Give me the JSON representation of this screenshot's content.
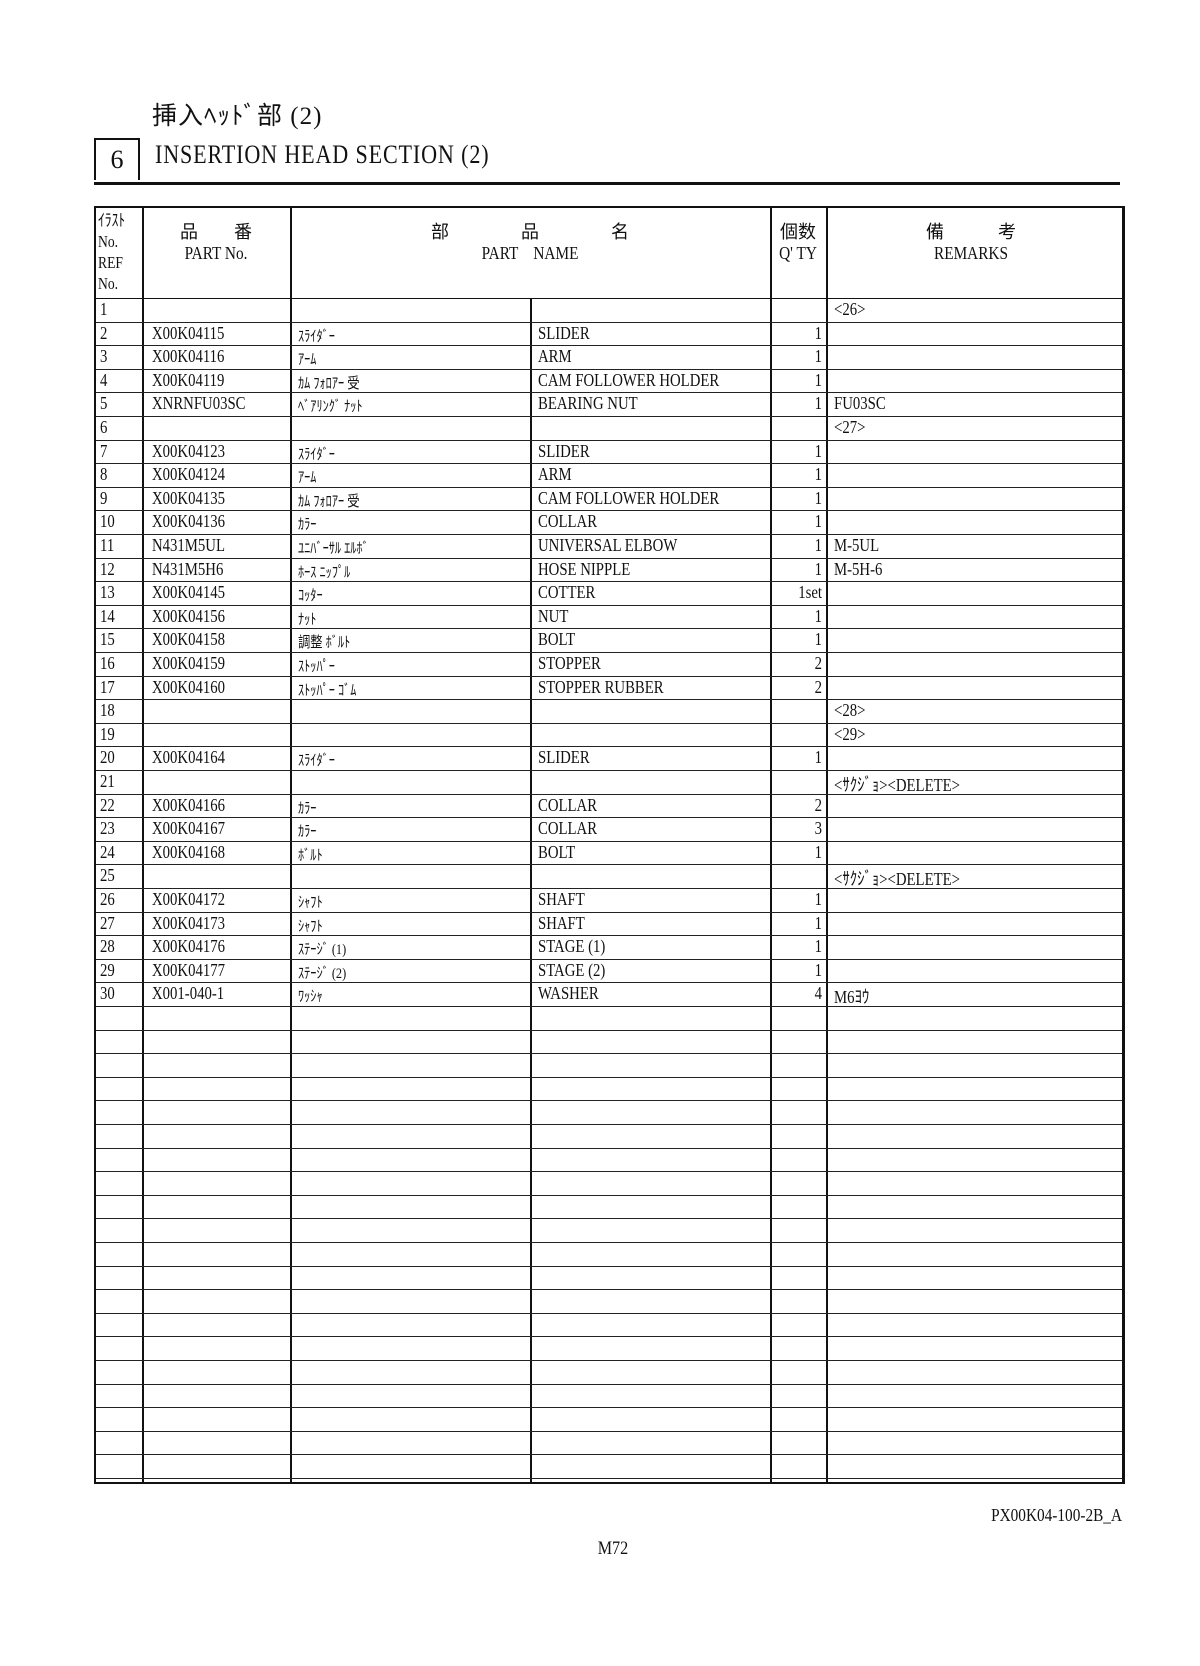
{
  "header": {
    "title_jp": "挿入ﾍｯﾄﾞ部 (2)",
    "section_number": "6",
    "title_en": "INSERTION HEAD SECTION (2)"
  },
  "columns": {
    "ref_jp": "ｲﾗｽﾄ",
    "ref_en": "No.",
    "ref_en2": "REF",
    "ref_en3": "No.",
    "partno_jp": "品　　番",
    "partno_en": "PART No.",
    "name_jp": "部　　　　品　　　　名",
    "name_en": "PART　NAME",
    "qty_jp": "個数",
    "qty_en": "Q' TY",
    "remarks_jp": "備　　　考",
    "remarks_en": "REMARKS"
  },
  "rows": [
    {
      "ref": "1",
      "part_no": "",
      "name_jp": "",
      "name_en": "",
      "qty": "",
      "remarks": "<26>"
    },
    {
      "ref": "2",
      "part_no": "X00K04115",
      "name_jp": "ｽﾗｲﾀﾞｰ",
      "name_en": "SLIDER",
      "qty": "1",
      "remarks": ""
    },
    {
      "ref": "3",
      "part_no": "X00K04116",
      "name_jp": "ｱｰﾑ",
      "name_en": "ARM",
      "qty": "1",
      "remarks": ""
    },
    {
      "ref": "4",
      "part_no": "X00K04119",
      "name_jp": "ｶﾑ ﾌｫﾛｱｰ 受",
      "name_en": "CAM FOLLOWER HOLDER",
      "qty": "1",
      "remarks": ""
    },
    {
      "ref": "5",
      "part_no": "XNRNFU03SC",
      "name_jp": "ﾍﾞｱﾘﾝｸﾞ ﾅｯﾄ",
      "name_en": "BEARING NUT",
      "qty": "1",
      "remarks": "FU03SC"
    },
    {
      "ref": "6",
      "part_no": "",
      "name_jp": "",
      "name_en": "",
      "qty": "",
      "remarks": "<27>"
    },
    {
      "ref": "7",
      "part_no": "X00K04123",
      "name_jp": "ｽﾗｲﾀﾞｰ",
      "name_en": "SLIDER",
      "qty": "1",
      "remarks": ""
    },
    {
      "ref": "8",
      "part_no": "X00K04124",
      "name_jp": "ｱｰﾑ",
      "name_en": "ARM",
      "qty": "1",
      "remarks": ""
    },
    {
      "ref": "9",
      "part_no": "X00K04135",
      "name_jp": "ｶﾑ ﾌｫﾛｱｰ 受",
      "name_en": "CAM FOLLOWER HOLDER",
      "qty": "1",
      "remarks": ""
    },
    {
      "ref": "10",
      "part_no": "X00K04136",
      "name_jp": "ｶﾗｰ",
      "name_en": "COLLAR",
      "qty": "1",
      "remarks": ""
    },
    {
      "ref": "11",
      "part_no": "N431M5UL",
      "name_jp": "ﾕﾆﾊﾞｰｻﾙ ｴﾙﾎﾞ",
      "name_en": "UNIVERSAL ELBOW",
      "qty": "1",
      "remarks": "M-5UL"
    },
    {
      "ref": "12",
      "part_no": "N431M5H6",
      "name_jp": "ﾎｰｽ ﾆｯﾌﾟﾙ",
      "name_en": "HOSE NIPPLE",
      "qty": "1",
      "remarks": "M-5H-6"
    },
    {
      "ref": "13",
      "part_no": "X00K04145",
      "name_jp": "ｺｯﾀｰ",
      "name_en": "COTTER",
      "qty": "1set",
      "remarks": ""
    },
    {
      "ref": "14",
      "part_no": "X00K04156",
      "name_jp": "ﾅｯﾄ",
      "name_en": "NUT",
      "qty": "1",
      "remarks": ""
    },
    {
      "ref": "15",
      "part_no": "X00K04158",
      "name_jp": "調整 ﾎﾞﾙﾄ",
      "name_en": "BOLT",
      "qty": "1",
      "remarks": ""
    },
    {
      "ref": "16",
      "part_no": "X00K04159",
      "name_jp": "ｽﾄｯﾊﾟｰ",
      "name_en": "STOPPER",
      "qty": "2",
      "remarks": ""
    },
    {
      "ref": "17",
      "part_no": "X00K04160",
      "name_jp": "ｽﾄｯﾊﾟｰ ｺﾞﾑ",
      "name_en": "STOPPER RUBBER",
      "qty": "2",
      "remarks": ""
    },
    {
      "ref": "18",
      "part_no": "",
      "name_jp": "",
      "name_en": "",
      "qty": "",
      "remarks": "<28>"
    },
    {
      "ref": "19",
      "part_no": "",
      "name_jp": "",
      "name_en": "",
      "qty": "",
      "remarks": "<29>"
    },
    {
      "ref": "20",
      "part_no": "X00K04164",
      "name_jp": "ｽﾗｲﾀﾞｰ",
      "name_en": "SLIDER",
      "qty": "1",
      "remarks": ""
    },
    {
      "ref": "21",
      "part_no": "",
      "name_jp": "",
      "name_en": "",
      "qty": "",
      "remarks": "<ｻｸｼﾞｮ><DELETE>"
    },
    {
      "ref": "22",
      "part_no": "X00K04166",
      "name_jp": "ｶﾗｰ",
      "name_en": "COLLAR",
      "qty": "2",
      "remarks": ""
    },
    {
      "ref": "23",
      "part_no": "X00K04167",
      "name_jp": "ｶﾗｰ",
      "name_en": "COLLAR",
      "qty": "3",
      "remarks": ""
    },
    {
      "ref": "24",
      "part_no": "X00K04168",
      "name_jp": "ﾎﾞﾙﾄ",
      "name_en": "BOLT",
      "qty": "1",
      "remarks": ""
    },
    {
      "ref": "25",
      "part_no": "",
      "name_jp": "",
      "name_en": "",
      "qty": "",
      "remarks": "<ｻｸｼﾞｮ><DELETE>"
    },
    {
      "ref": "26",
      "part_no": "X00K04172",
      "name_jp": "ｼｬﾌﾄ",
      "name_en": "SHAFT",
      "qty": "1",
      "remarks": ""
    },
    {
      "ref": "27",
      "part_no": "X00K04173",
      "name_jp": "ｼｬﾌﾄ",
      "name_en": "SHAFT",
      "qty": "1",
      "remarks": ""
    },
    {
      "ref": "28",
      "part_no": "X00K04176",
      "name_jp": "ｽﾃｰｼﾞ (1)",
      "name_en": "STAGE (1)",
      "qty": "1",
      "remarks": ""
    },
    {
      "ref": "29",
      "part_no": "X00K04177",
      "name_jp": "ｽﾃｰｼﾞ (2)",
      "name_en": "STAGE (2)",
      "qty": "1",
      "remarks": ""
    },
    {
      "ref": "30",
      "part_no": "X001-040-1",
      "name_jp": "ﾜｯｼｬ",
      "name_en": "WASHER",
      "qty": "4",
      "remarks": "M6ﾖｳ"
    }
  ],
  "empty_rows": 20,
  "footer": {
    "doc_code": "PX00K04-100-2B_A",
    "page": "M72"
  }
}
